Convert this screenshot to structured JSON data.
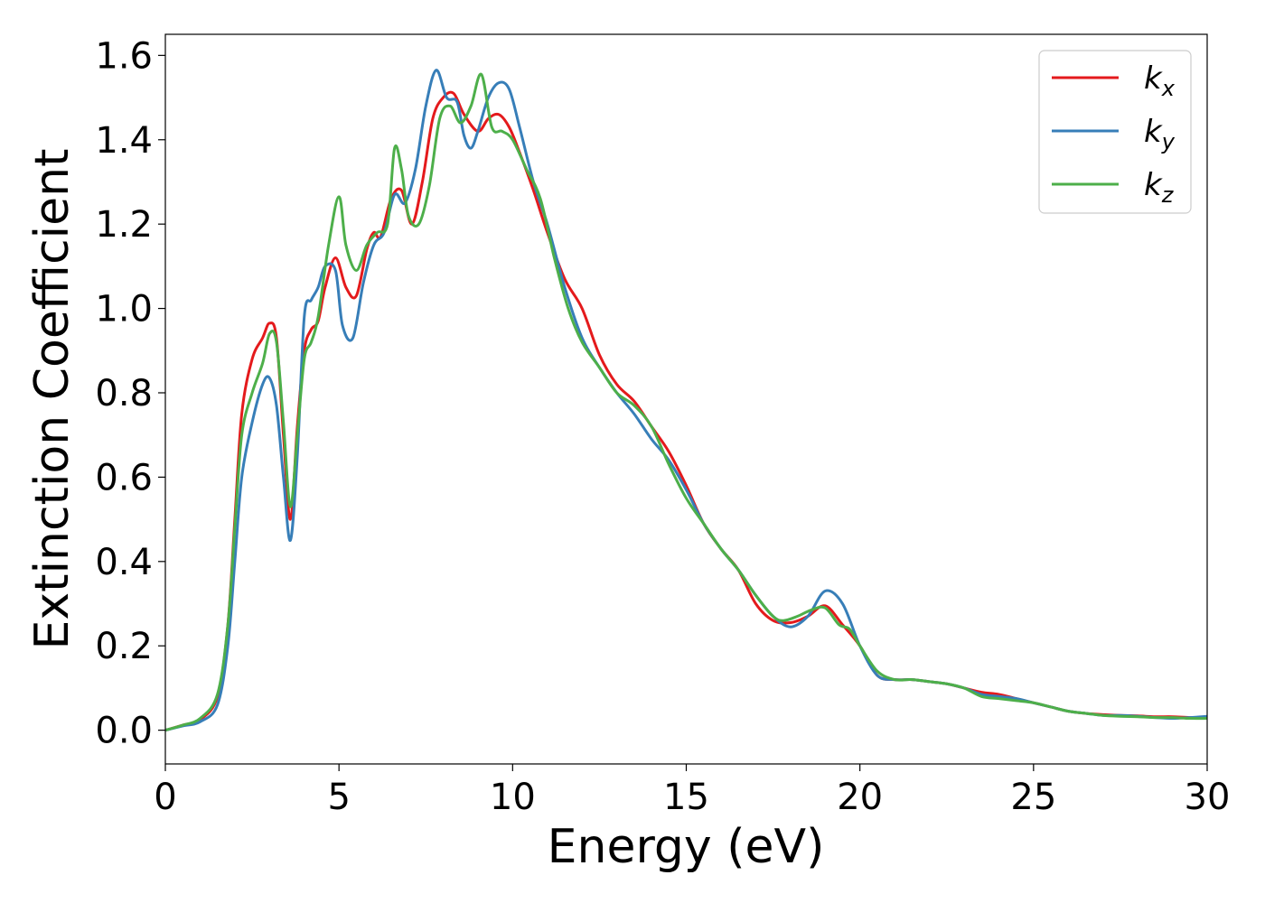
{
  "chart_data": {
    "type": "line",
    "xlabel": "Energy (eV)",
    "ylabel": "Extinction Coefficient",
    "xlim": [
      0,
      30
    ],
    "ylim": [
      -0.08,
      1.65
    ],
    "xticks": [
      0,
      5,
      10,
      15,
      20,
      25,
      30
    ],
    "xtick_labels": [
      "0",
      "5",
      "10",
      "15",
      "20",
      "25",
      "30"
    ],
    "yticks": [
      0.0,
      0.2,
      0.4,
      0.6,
      0.8,
      1.0,
      1.2,
      1.4,
      1.6
    ],
    "ytick_labels": [
      "0.0",
      "0.2",
      "0.4",
      "0.6",
      "0.8",
      "1.0",
      "1.2",
      "1.4",
      "1.6"
    ],
    "grid": false,
    "legend_position": "top-right",
    "series": [
      {
        "name": "k_x",
        "legend_base": "k",
        "legend_sub": "x",
        "color": "#e41a1c",
        "x": [
          0,
          0.5,
          1.0,
          1.5,
          1.8,
          2.0,
          2.2,
          2.5,
          2.8,
          3.0,
          3.2,
          3.4,
          3.6,
          3.8,
          4.0,
          4.2,
          4.4,
          4.6,
          4.9,
          5.2,
          5.5,
          5.8,
          6.0,
          6.2,
          6.5,
          6.8,
          7.1,
          7.4,
          7.7,
          8.0,
          8.3,
          8.6,
          9.0,
          9.3,
          9.6,
          9.9,
          10.2,
          10.6,
          11.0,
          11.5,
          12.0,
          12.5,
          13.0,
          13.5,
          14.0,
          14.5,
          15.0,
          15.5,
          16.0,
          16.5,
          17.0,
          17.5,
          18.0,
          18.5,
          19.0,
          19.5,
          20.0,
          20.5,
          21.0,
          21.5,
          22.0,
          22.5,
          23.0,
          23.5,
          24.0,
          24.5,
          25.0,
          25.5,
          26.0,
          26.5,
          27.0,
          27.5,
          28.0,
          28.5,
          29.0,
          29.5,
          30.0
        ],
        "y": [
          0.0,
          0.012,
          0.025,
          0.08,
          0.25,
          0.5,
          0.75,
          0.88,
          0.93,
          0.965,
          0.93,
          0.7,
          0.5,
          0.72,
          0.9,
          0.95,
          0.97,
          1.05,
          1.12,
          1.05,
          1.03,
          1.14,
          1.18,
          1.17,
          1.26,
          1.28,
          1.2,
          1.3,
          1.45,
          1.5,
          1.51,
          1.46,
          1.42,
          1.45,
          1.46,
          1.43,
          1.37,
          1.28,
          1.18,
          1.07,
          1.0,
          0.89,
          0.82,
          0.78,
          0.72,
          0.66,
          0.58,
          0.49,
          0.43,
          0.38,
          0.3,
          0.26,
          0.255,
          0.27,
          0.295,
          0.25,
          0.2,
          0.13,
          0.12,
          0.12,
          0.115,
          0.11,
          0.1,
          0.09,
          0.085,
          0.075,
          0.065,
          0.055,
          0.045,
          0.04,
          0.037,
          0.035,
          0.034,
          0.032,
          0.032,
          0.03,
          0.03
        ]
      },
      {
        "name": "k_y",
        "legend_base": "k",
        "legend_sub": "y",
        "color": "#377eb8",
        "x": [
          0,
          0.5,
          1.0,
          1.5,
          1.8,
          2.0,
          2.2,
          2.5,
          2.8,
          3.0,
          3.2,
          3.4,
          3.6,
          3.8,
          4.0,
          4.2,
          4.4,
          4.6,
          4.9,
          5.1,
          5.4,
          5.7,
          6.0,
          6.3,
          6.6,
          6.9,
          7.2,
          7.5,
          7.8,
          8.1,
          8.4,
          8.6,
          8.8,
          9.0,
          9.3,
          9.6,
          9.9,
          10.2,
          10.6,
          11.0,
          11.5,
          12.0,
          12.5,
          13.0,
          13.5,
          14.0,
          14.5,
          15.0,
          15.5,
          16.0,
          16.5,
          17.0,
          17.5,
          18.0,
          18.5,
          19.0,
          19.5,
          20.0,
          20.5,
          21.0,
          21.5,
          22.0,
          22.5,
          23.0,
          23.5,
          24.0,
          24.5,
          25.0,
          25.5,
          26.0,
          26.5,
          27.0,
          27.5,
          28.0,
          28.5,
          29.0,
          29.5,
          30.0
        ],
        "y": [
          0.0,
          0.01,
          0.02,
          0.06,
          0.2,
          0.4,
          0.6,
          0.73,
          0.82,
          0.835,
          0.77,
          0.6,
          0.45,
          0.65,
          0.98,
          1.02,
          1.05,
          1.1,
          1.09,
          0.96,
          0.93,
          1.06,
          1.15,
          1.18,
          1.27,
          1.25,
          1.33,
          1.48,
          1.565,
          1.5,
          1.49,
          1.41,
          1.38,
          1.42,
          1.5,
          1.535,
          1.52,
          1.43,
          1.3,
          1.2,
          1.05,
          0.93,
          0.86,
          0.8,
          0.75,
          0.69,
          0.64,
          0.57,
          0.49,
          0.43,
          0.38,
          0.32,
          0.27,
          0.245,
          0.27,
          0.33,
          0.3,
          0.2,
          0.13,
          0.12,
          0.12,
          0.115,
          0.11,
          0.1,
          0.085,
          0.08,
          0.075,
          0.065,
          0.055,
          0.045,
          0.04,
          0.035,
          0.035,
          0.033,
          0.03,
          0.028,
          0.03,
          0.033
        ]
      },
      {
        "name": "k_z",
        "legend_base": "k",
        "legend_sub": "z",
        "color": "#4daf4a",
        "x": [
          0,
          0.5,
          1.0,
          1.5,
          1.8,
          2.0,
          2.2,
          2.5,
          2.8,
          3.0,
          3.2,
          3.4,
          3.6,
          3.8,
          4.0,
          4.2,
          4.4,
          4.7,
          5.0,
          5.2,
          5.5,
          5.8,
          6.1,
          6.4,
          6.6,
          6.8,
          7.0,
          7.3,
          7.6,
          7.9,
          8.2,
          8.5,
          8.8,
          9.1,
          9.4,
          9.7,
          10.0,
          10.4,
          10.8,
          11.2,
          11.6,
          12.0,
          12.5,
          13.0,
          13.5,
          14.0,
          14.5,
          15.0,
          15.5,
          16.0,
          16.5,
          17.0,
          17.5,
          17.8,
          18.2,
          18.6,
          19.0,
          19.4,
          19.7,
          20.0,
          20.5,
          21.0,
          21.5,
          22.0,
          22.5,
          23.0,
          23.5,
          24.0,
          24.5,
          25.0,
          25.5,
          26.0,
          26.5,
          27.0,
          27.5,
          28.0,
          28.5,
          29.0,
          29.5,
          30.0
        ],
        "y": [
          0.0,
          0.012,
          0.028,
          0.085,
          0.25,
          0.48,
          0.7,
          0.8,
          0.87,
          0.94,
          0.92,
          0.73,
          0.53,
          0.7,
          0.88,
          0.92,
          0.98,
          1.15,
          1.265,
          1.15,
          1.09,
          1.15,
          1.18,
          1.2,
          1.38,
          1.33,
          1.22,
          1.2,
          1.29,
          1.45,
          1.48,
          1.44,
          1.48,
          1.555,
          1.43,
          1.42,
          1.4,
          1.33,
          1.26,
          1.12,
          1.0,
          0.92,
          0.86,
          0.8,
          0.77,
          0.72,
          0.63,
          0.55,
          0.49,
          0.43,
          0.38,
          0.32,
          0.27,
          0.26,
          0.27,
          0.285,
          0.29,
          0.25,
          0.24,
          0.2,
          0.14,
          0.12,
          0.12,
          0.115,
          0.11,
          0.1,
          0.08,
          0.075,
          0.07,
          0.065,
          0.055,
          0.045,
          0.04,
          0.035,
          0.033,
          0.032,
          0.03,
          0.03,
          0.028,
          0.028
        ]
      }
    ]
  }
}
